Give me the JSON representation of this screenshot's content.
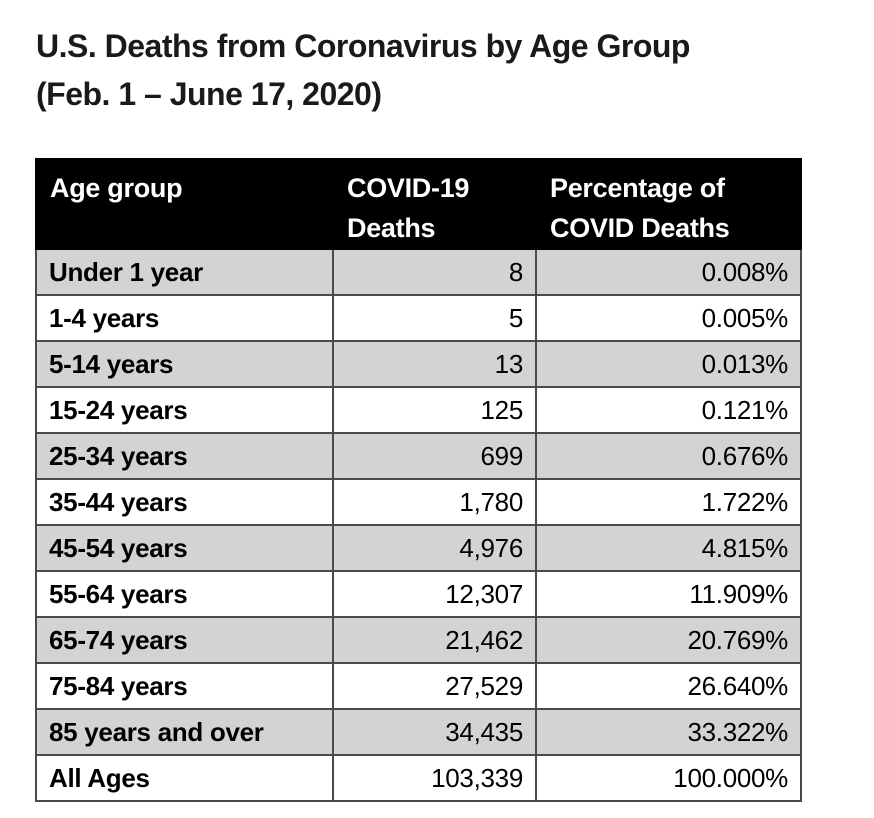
{
  "page": {
    "title_line1": "U.S. Deaths from Coronavirus by Age Group",
    "title_line2": "(Feb. 1 – June 17, 2020)"
  },
  "table": {
    "columns": [
      "Age group",
      "COVID-19 Deaths",
      "Percentage of COVID Deaths"
    ],
    "rows": [
      {
        "age_group": "Under 1 year",
        "deaths": "8",
        "percentage": "0.008%"
      },
      {
        "age_group": "1-4 years",
        "deaths": "5",
        "percentage": "0.005%"
      },
      {
        "age_group": "5-14 years",
        "deaths": "13",
        "percentage": "0.013%"
      },
      {
        "age_group": "15-24 years",
        "deaths": "125",
        "percentage": "0.121%"
      },
      {
        "age_group": "25-34 years",
        "deaths": "699",
        "percentage": "0.676%"
      },
      {
        "age_group": "35-44 years",
        "deaths": "1,780",
        "percentage": "1.722%"
      },
      {
        "age_group": "45-54 years",
        "deaths": "4,976",
        "percentage": "4.815%"
      },
      {
        "age_group": "55-64 years",
        "deaths": "12,307",
        "percentage": "11.909%"
      },
      {
        "age_group": "65-74 years",
        "deaths": "21,462",
        "percentage": "20.769%"
      },
      {
        "age_group": "75-84 years",
        "deaths": "27,529",
        "percentage": "26.640%"
      },
      {
        "age_group": "85 years and over",
        "deaths": "34,435",
        "percentage": "33.322%"
      },
      {
        "age_group": "All Ages",
        "deaths": "103,339",
        "percentage": "100.000%"
      }
    ]
  },
  "colors": {
    "header_bg": "#000000",
    "header_text": "#ffffff",
    "row_bg": "#ffffff",
    "row_alt_bg": "#d3d3d3",
    "border": "#4a4a4a",
    "title_text": "#1a1a1a"
  },
  "chart_data": {
    "type": "table",
    "title": "U.S. Deaths from Coronavirus by Age Group (Feb. 1 – June 17, 2020)",
    "columns": [
      "Age group",
      "COVID-19 Deaths",
      "Percentage of COVID Deaths"
    ],
    "categories": [
      "Under 1 year",
      "1-4 years",
      "5-14 years",
      "15-24 years",
      "25-34 years",
      "35-44 years",
      "45-54 years",
      "55-64 years",
      "65-74 years",
      "75-84 years",
      "85 years and over",
      "All Ages"
    ],
    "series": [
      {
        "name": "COVID-19 Deaths",
        "values": [
          8,
          5,
          13,
          125,
          699,
          1780,
          4976,
          12307,
          21462,
          27529,
          34435,
          103339
        ]
      },
      {
        "name": "Percentage of COVID Deaths",
        "values": [
          0.008,
          0.005,
          0.013,
          0.121,
          0.676,
          1.722,
          4.815,
          11.909,
          20.769,
          26.64,
          33.322,
          100.0
        ]
      }
    ],
    "layout": {
      "header_style": "black background, white bold text, two-line headers",
      "row_striping": "first data row and alternating rows light gray (#d3d3d3), others white",
      "alignment": "age group left-aligned bold; numeric columns right-aligned regular"
    }
  }
}
